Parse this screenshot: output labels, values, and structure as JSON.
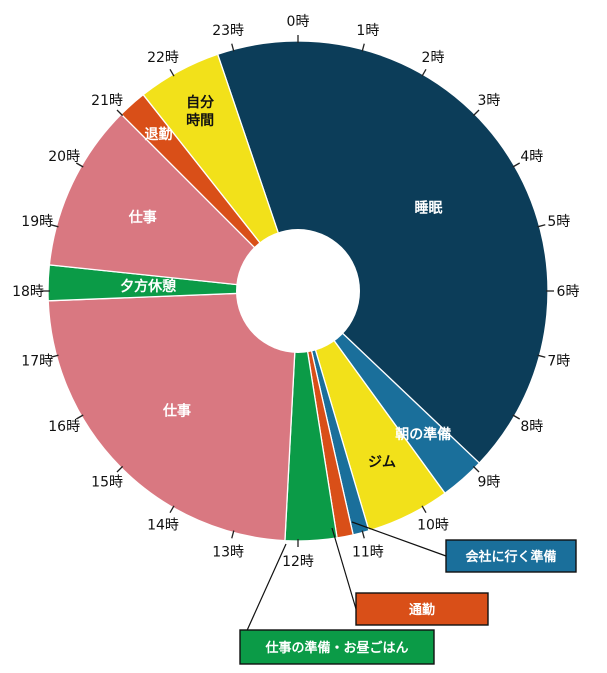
{
  "chart_data": {
    "type": "pie",
    "title": "",
    "style": "donut",
    "start_angle_hour": 0,
    "hours_total": 24,
    "hour_tick_labels": [
      "0時",
      "1時",
      "2時",
      "3時",
      "4時",
      "5時",
      "6時",
      "7時",
      "8時",
      "9時",
      "10時",
      "11時",
      "12時",
      "13時",
      "14時",
      "15時",
      "16時",
      "17時",
      "18時",
      "19時",
      "20時",
      "21時",
      "22時",
      "23時"
    ],
    "slices": [
      {
        "label": "睡眠",
        "start": 22.75,
        "end": 32.9,
        "color": "#0c3d59",
        "text_color": "#ffffff"
      },
      {
        "label": "朝の準備",
        "start": 8.9,
        "end": 9.6,
        "color": "#1a6f9b",
        "text_color": "#ffffff"
      },
      {
        "label": "ジム",
        "start": 9.6,
        "end": 10.9,
        "color": "#f2e11a",
        "text_color": "#111111"
      },
      {
        "label": "会社に行く準備",
        "start": 10.9,
        "end": 11.15,
        "color": "#1a6f9b",
        "text_color": "#ffffff"
      },
      {
        "label": "通勤",
        "start": 11.15,
        "end": 11.4,
        "color": "#d94f18",
        "text_color": "#ffffff"
      },
      {
        "label": "仕事の準備・お昼ごはん",
        "start": 11.4,
        "end": 12.2,
        "color": "#0b9b47",
        "text_color": "#ffffff"
      },
      {
        "label": "仕事",
        "start": 12.2,
        "end": 17.85,
        "color": "#d97881",
        "text_color": "#ffffff"
      },
      {
        "label": "夕方休憩",
        "start": 17.85,
        "end": 18.4,
        "color": "#0b9b47",
        "text_color": "#ffffff"
      },
      {
        "label": "仕事",
        "start": 18.4,
        "end": 21.0,
        "color": "#d97881",
        "text_color": "#ffffff"
      },
      {
        "label": "退勤",
        "start": 21.0,
        "end": 21.45,
        "color": "#d94f18",
        "text_color": "#ffffff"
      },
      {
        "label": "自分\n時間",
        "start": 21.45,
        "end": 22.75,
        "color": "#f2e11a",
        "text_color": "#111111"
      }
    ],
    "callouts": [
      {
        "label": "会社に行く準備",
        "color": "#1a6f9b",
        "text_color": "#ffffff"
      },
      {
        "label": "通勤",
        "color": "#d94f18",
        "text_color": "#ffffff"
      },
      {
        "label": "仕事の準備・お昼ごはん",
        "color": "#0b9b47",
        "text_color": "#ffffff"
      }
    ]
  }
}
